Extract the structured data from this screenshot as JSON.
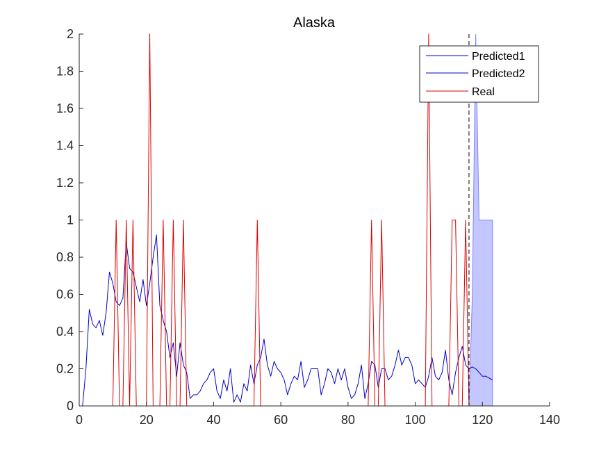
{
  "chart_data": {
    "type": "line",
    "title": "Alaska",
    "xlabel": "",
    "ylabel": "",
    "xlim": [
      0,
      140
    ],
    "ylim": [
      0,
      2
    ],
    "xticks": [
      "0",
      "20",
      "40",
      "60",
      "80",
      "100",
      "120",
      "140"
    ],
    "yticks": [
      "0",
      "0.2",
      "0.4",
      "0.6",
      "0.8",
      "1",
      "1.2",
      "1.4",
      "1.6",
      "1.8",
      "2"
    ],
    "grid": false,
    "legend_position": "top-right",
    "vline": {
      "x": 116,
      "style": "dashed",
      "color": "#000000"
    },
    "colors": {
      "predicted": "#0000cc",
      "real": "#dd0000",
      "band_fill": "#c3c6ff",
      "band_edge": "#7f84ff"
    },
    "series": [
      {
        "name": "Predicted1",
        "color": "#0000cc",
        "x": [
          1,
          2,
          3,
          4,
          5,
          6,
          7,
          8,
          9,
          10,
          11,
          12,
          13,
          14,
          15,
          16,
          17,
          18,
          19,
          20,
          21,
          22,
          23,
          24,
          25,
          26,
          27,
          28,
          29,
          30,
          31,
          32,
          33,
          34,
          35,
          36,
          37,
          38,
          39,
          40,
          41,
          42,
          43,
          44,
          45,
          46,
          47,
          48,
          49,
          50,
          51,
          52,
          53,
          54,
          55,
          56,
          57,
          58,
          59,
          60,
          61,
          62,
          63,
          64,
          65,
          66,
          67,
          68,
          69,
          70,
          71,
          72,
          73,
          74,
          75,
          76,
          77,
          78,
          79,
          80,
          81,
          82,
          83,
          84,
          85,
          86,
          87,
          88,
          89,
          90,
          91,
          92,
          93,
          94,
          95,
          96,
          97,
          98,
          99,
          100,
          101,
          102,
          103,
          104,
          105,
          106,
          107,
          108,
          109,
          110,
          111,
          112,
          113,
          114,
          115,
          116
        ],
        "y": [
          0,
          0.2,
          0.52,
          0.44,
          0.42,
          0.46,
          0.38,
          0.5,
          0.72,
          0.66,
          0.56,
          0.54,
          0.58,
          0.88,
          0.74,
          0.72,
          0.64,
          0.56,
          0.68,
          0.54,
          0.66,
          0.8,
          0.92,
          0.54,
          0.46,
          0.4,
          0.26,
          0.34,
          0.16,
          0.34,
          0.22,
          0.18,
          0.04,
          0.06,
          0.06,
          0.08,
          0.12,
          0.14,
          0.18,
          0.2,
          0.08,
          0.04,
          0.14,
          0.08,
          0.2,
          0.02,
          0.06,
          0.02,
          0.12,
          0.08,
          0.22,
          0.12,
          0.22,
          0.26,
          0.36,
          0.22,
          0.16,
          0.24,
          0.2,
          0.18,
          0.14,
          0.06,
          0.12,
          0.16,
          0.14,
          0.24,
          0.1,
          0.14,
          0.2,
          0.2,
          0.2,
          0.06,
          0.12,
          0.2,
          0.18,
          0.12,
          0.2,
          0.14,
          0.2,
          0.1,
          0.04,
          0.06,
          0.12,
          0.22,
          0.04,
          0.12,
          0.24,
          0.22,
          0.1,
          0.2,
          0.2,
          0.14,
          0.16,
          0.22,
          0.3,
          0.22,
          0.26,
          0.26,
          0.22,
          0.12,
          0.14,
          0.12,
          0.1,
          0.16,
          0.26,
          0.16,
          0.14,
          0.18,
          0.3,
          0.14,
          0.06,
          0.18,
          0.26,
          0.32,
          0.22,
          0.2
        ]
      },
      {
        "name": "Predicted2",
        "color": "#0000cc",
        "x": [
          116,
          117,
          118,
          119,
          120,
          121,
          122,
          123
        ],
        "y": [
          0.2,
          0.21,
          0.2,
          0.18,
          0.16,
          0.16,
          0.15,
          0.14
        ]
      },
      {
        "name": "Real",
        "color": "#dd0000",
        "x": [
          0,
          10,
          11,
          12,
          13,
          14,
          15,
          16,
          17,
          20,
          21,
          22,
          24,
          25,
          26,
          27,
          28,
          29,
          30,
          31,
          32,
          52,
          53,
          54,
          86,
          87,
          88,
          89,
          90,
          91,
          103,
          104,
          105,
          110,
          111,
          112,
          113,
          114,
          115,
          116
        ],
        "y": [
          0,
          0,
          1,
          0,
          0,
          1,
          0,
          1,
          0,
          0,
          2,
          0,
          0,
          1,
          0,
          0,
          1,
          0,
          0,
          1,
          0,
          0,
          1,
          0,
          0,
          1,
          0,
          0,
          1,
          0,
          0,
          2,
          0,
          0,
          1,
          1,
          0,
          0,
          1,
          0
        ]
      }
    ],
    "band": {
      "x": [
        116,
        117,
        118,
        119,
        120,
        121,
        122,
        123
      ],
      "lower": [
        0,
        0,
        0,
        0,
        0,
        0,
        0,
        0
      ],
      "upper": [
        0,
        0.6,
        2,
        1,
        1,
        1,
        1,
        1
      ]
    }
  }
}
